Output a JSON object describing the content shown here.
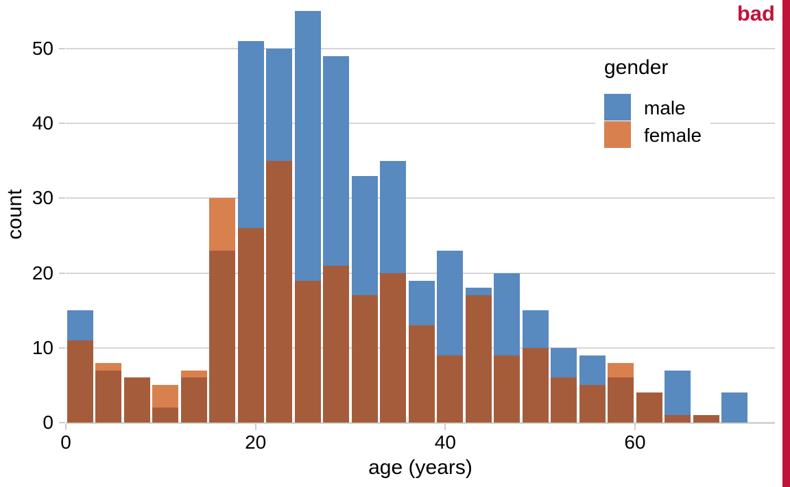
{
  "stamp": {
    "label": "bad",
    "color": "#c1123a"
  },
  "chart_data": {
    "type": "bar",
    "subtype": "overlapping-histograms",
    "title": "",
    "xlabel": "age (years)",
    "ylabel": "count",
    "bin_width_years": 3,
    "bin_starts": [
      0,
      3,
      6,
      9,
      12,
      15,
      18,
      21,
      24,
      27,
      30,
      33,
      36,
      39,
      42,
      45,
      48,
      51,
      54,
      57,
      60,
      63,
      66,
      69
    ],
    "series": [
      {
        "name": "male",
        "color": "#5889bf",
        "values": [
          15,
          7,
          6,
          2,
          6,
          23,
          51,
          50,
          55,
          49,
          33,
          35,
          19,
          23,
          18,
          20,
          15,
          10,
          9,
          6,
          4,
          7,
          1,
          4
        ]
      },
      {
        "name": "female",
        "color": "#d8804e",
        "values": [
          11,
          8,
          6,
          5,
          7,
          30,
          26,
          35,
          19,
          21,
          17,
          20,
          13,
          9,
          17,
          9,
          10,
          6,
          5,
          8,
          4,
          1,
          1,
          0
        ]
      }
    ],
    "overlap_color": "#a55c3b",
    "x_ticks": [
      0,
      20,
      40,
      60
    ],
    "y_ticks": [
      0,
      10,
      20,
      30,
      40,
      50
    ],
    "xlim": [
      0,
      74.8
    ],
    "ylim": [
      0,
      56.5
    ],
    "grid": "horizontal",
    "legend": {
      "title": "gender",
      "position": "upper-right",
      "entries": [
        "male",
        "female"
      ]
    }
  }
}
